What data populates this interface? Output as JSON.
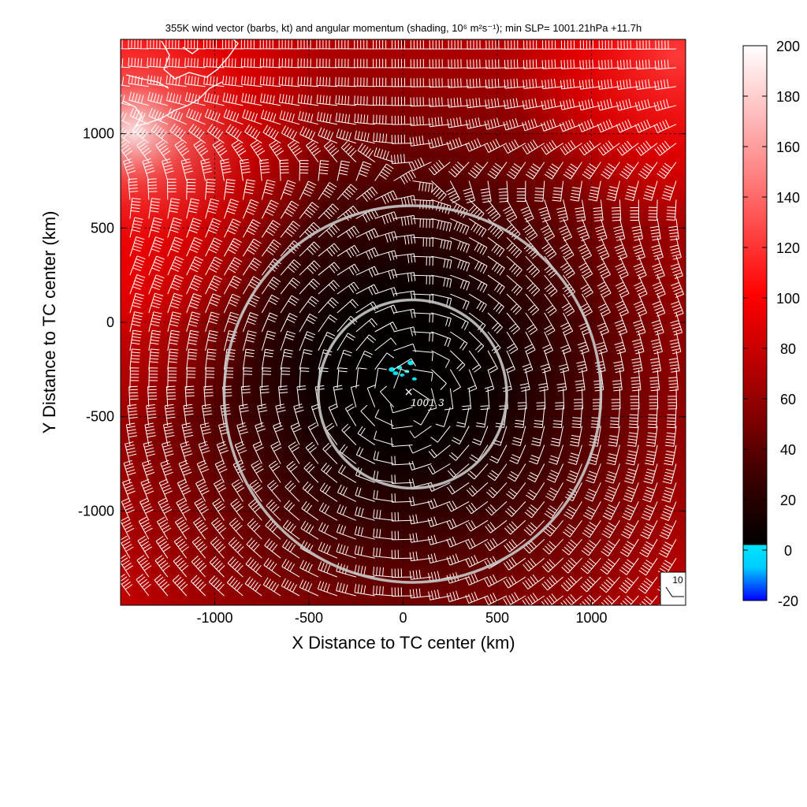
{
  "chart_data": {
    "type": "heatmap",
    "title": "355K wind vector (barbs, kt) and angular momentum (shading, 10⁶ m²s⁻¹); min SLP= 1001.21hPa  +11.7h",
    "xlabel": "X Distance to TC center (km)",
    "ylabel": "Y Distance to TC center (km)",
    "xlim": [
      -1500,
      1500
    ],
    "ylim": [
      -1500,
      1500
    ],
    "x_ticks": [
      -1000,
      -500,
      0,
      500,
      1000
    ],
    "y_ticks": [
      -1000,
      -500,
      0,
      500,
      1000
    ],
    "x_tick_labels": [
      "-1000",
      "-500",
      "0",
      "500",
      "1000"
    ],
    "y_tick_labels": [
      "-1000",
      "-500",
      "0",
      "500",
      "1000"
    ],
    "grid": true,
    "colorbar": {
      "ticks": [
        200,
        180,
        160,
        140,
        120,
        100,
        80,
        60,
        40,
        20,
        0,
        -20
      ],
      "tick_labels": [
        "200",
        "180",
        "160",
        "140",
        "120",
        "100",
        "80",
        "60",
        "40",
        "20",
        "0",
        "-20"
      ],
      "range": [
        -20,
        200
      ],
      "colors": {
        "neg_low": "#0000ff",
        "zero": "#00ffff",
        "low": "#000000",
        "mid": "#c00000",
        "high": "#ff0000",
        "top": "#ffffff"
      }
    },
    "center_marker": {
      "symbol": "×",
      "x": 30,
      "y": -370,
      "label": "1001.3"
    },
    "circles": [
      {
        "cx": 50,
        "cy": -380,
        "radius_km": 500
      },
      {
        "cx": 50,
        "cy": -380,
        "radius_km": 1000
      }
    ],
    "reference_barb": {
      "label": "10",
      "value_kt": 10
    },
    "barb_spacing_km": 100
  },
  "colors": {
    "barb": "#ffffff",
    "circle": "#c8c8c8",
    "coast": "#ffffff",
    "cyan": "#00e5ee",
    "grid": "#000000"
  }
}
